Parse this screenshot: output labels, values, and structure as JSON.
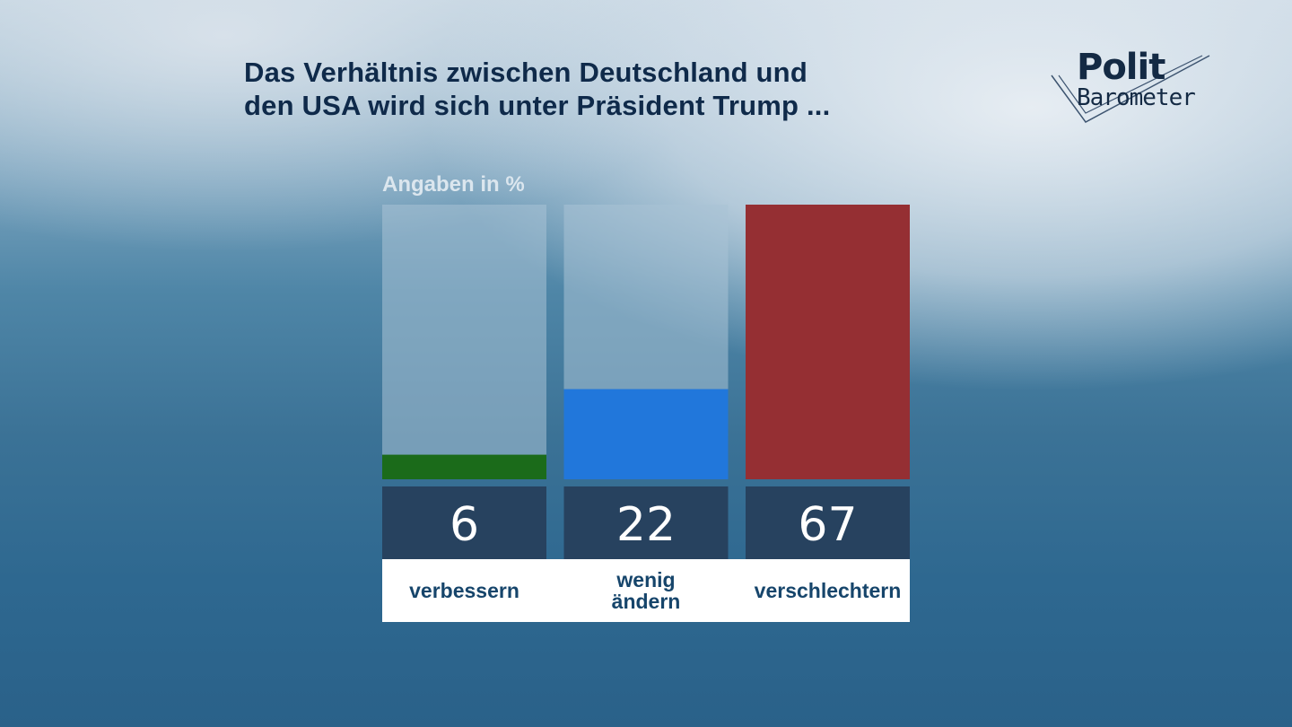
{
  "title": {
    "line1": "Das Verhältnis zwischen Deutschland und",
    "line2": "den USA wird sich unter Präsident Trump ..."
  },
  "logo": {
    "part1": "Polit",
    "part2": "Barometer"
  },
  "colors": {
    "track": "#a9c3d5",
    "value_box": "#27425f",
    "label_box": "#ffffff",
    "value_text": "#ffffff",
    "category_text": "#16456b"
  },
  "chart_data": {
    "type": "bar",
    "title": "Das Verhältnis zwischen Deutschland und den USA wird sich unter Präsident Trump ...",
    "unit_label": "Angaben in %",
    "ylim": [
      0,
      67
    ],
    "grid": false,
    "categories": [
      {
        "lines": [
          "verbessern"
        ],
        "value": 6,
        "display": "6",
        "color": "#1b6b1a"
      },
      {
        "lines": [
          "wenig",
          "ändern"
        ],
        "value": 22,
        "display": "22",
        "color": "#2177db"
      },
      {
        "lines": [
          "verschlechtern"
        ],
        "value": 67,
        "display": "67",
        "color": "#952f33"
      }
    ]
  }
}
